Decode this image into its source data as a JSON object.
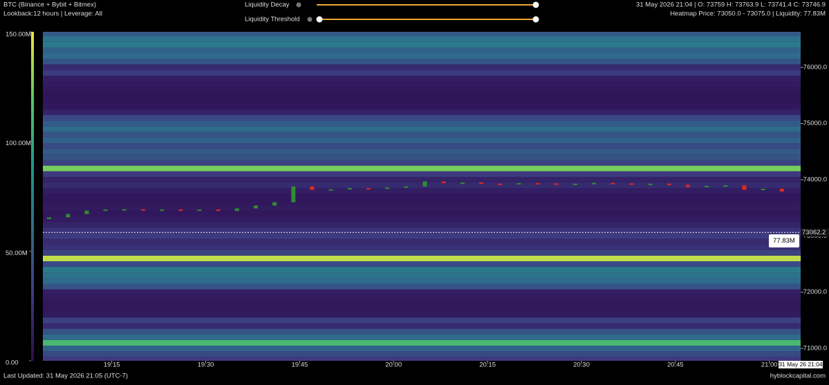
{
  "header": {
    "title": "BTC (Binance + Bybit + Bitmex)",
    "subtitle": "Lookback:12 hours | Leverage: All",
    "slider_1": "Liquidity Decay",
    "slider_2": "Liquidity Threshold",
    "ohlc": "31 May 2026 21:04 | O: 73759 H: 73763.9 L: 73741.4 C: 73746.9",
    "hover": "Heatmap Price: 73050.0 - 73075.0 | Liquidity: 77.83M"
  },
  "footer": {
    "updated": "Last Updated: 31 May 2026 21:05 (UTC-7)",
    "site": "hyblockcapital.com"
  },
  "chart_data": {
    "type": "candlestick",
    "xlim": [
      "19:04",
      "21:05"
    ],
    "xticks": [
      "19:15",
      "19:30",
      "19:45",
      "20:00",
      "20:15",
      "20:30",
      "20:45",
      "21:00"
    ],
    "ylim": [
      70780,
      76630
    ],
    "yticks": [
      {
        "value": 71000,
        "label": "71000.0"
      },
      {
        "value": 72000,
        "label": "72000.0"
      },
      {
        "value": 73000,
        "label": "73000.0"
      },
      {
        "value": 74000,
        "label": "74000.0"
      },
      {
        "value": 75000,
        "label": "75000.0"
      },
      {
        "value": 76000,
        "label": "76000.0"
      }
    ],
    "colorbar_lim": [
      0,
      150
    ],
    "colorbar_ticks": [
      {
        "value": 0,
        "label": "0.00"
      },
      {
        "value": 50,
        "label": "50.00M"
      },
      {
        "value": 100,
        "label": "100.00M"
      },
      {
        "value": 150,
        "label": "150.00M"
      }
    ],
    "heatmap": {
      "step": 100,
      "prices": [
        70800,
        70900,
        71000,
        71100,
        71200,
        71300,
        71400,
        71500,
        71600,
        71700,
        71800,
        71900,
        72000,
        72100,
        72200,
        72300,
        72400,
        72500,
        72600,
        72700,
        72800,
        72900,
        73000,
        73100,
        73200,
        73300,
        73400,
        73500,
        73600,
        73700,
        73800,
        73900,
        74000,
        74100,
        74200,
        74300,
        74400,
        74500,
        74600,
        74700,
        74800,
        74900,
        75000,
        75100,
        75200,
        75300,
        75400,
        75500,
        75600,
        75700,
        75800,
        75900,
        76000,
        76100,
        76200,
        76300,
        76400,
        76500,
        76600
      ],
      "values": [
        30,
        40,
        55,
        110,
        60,
        45,
        20,
        35,
        10,
        8,
        8,
        10,
        12,
        45,
        60,
        65,
        70,
        40,
        140,
        35,
        25,
        20,
        30,
        25,
        15,
        10,
        8,
        10,
        8,
        8,
        12,
        20,
        15,
        30,
        125,
        35,
        45,
        50,
        40,
        55,
        45,
        60,
        50,
        40,
        15,
        8,
        6,
        6,
        8,
        10,
        12,
        30,
        20,
        45,
        60,
        55,
        70,
        65,
        50
      ]
    },
    "x": [
      "19:05",
      "19:08",
      "19:11",
      "19:14",
      "19:17",
      "19:20",
      "19:23",
      "19:26",
      "19:29",
      "19:32",
      "19:35",
      "19:38",
      "19:41",
      "19:44",
      "19:47",
      "19:50",
      "19:53",
      "19:56",
      "19:59",
      "20:02",
      "20:05",
      "20:08",
      "20:11",
      "20:14",
      "20:17",
      "20:20",
      "20:23",
      "20:26",
      "20:29",
      "20:32",
      "20:35",
      "20:38",
      "20:41",
      "20:44",
      "20:47",
      "20:50",
      "20:53",
      "20:56",
      "20:59",
      "21:02"
    ],
    "open": [
      73300,
      73330,
      73390,
      73450,
      73470,
      73475,
      73460,
      73470,
      73455,
      73470,
      73445,
      73490,
      73540,
      73600,
      73880,
      73820,
      73830,
      73850,
      73840,
      73860,
      73880,
      73970,
      73940,
      73950,
      73930,
      73920,
      73940,
      73935,
      73925,
      73930,
      73945,
      73935,
      73920,
      73930,
      73910,
      73870,
      73890,
      73900,
      73820,
      73840
    ],
    "close": [
      73330,
      73390,
      73450,
      73470,
      73475,
      73460,
      73470,
      73455,
      73470,
      73445,
      73490,
      73540,
      73600,
      73880,
      73820,
      73830,
      73850,
      73840,
      73860,
      73880,
      73970,
      73940,
      73950,
      73930,
      73920,
      73940,
      73935,
      73925,
      73930,
      73945,
      73935,
      73920,
      73930,
      73910,
      73870,
      73890,
      73900,
      73820,
      73840,
      73790
    ],
    "up_color": "#2f8f2f",
    "down_color": "#e3281f",
    "crosshair_price": {
      "value": 73062.2,
      "label": "73062.2"
    },
    "crosshair_time": "31 May 26 21:04",
    "tooltip": {
      "value": 77.83,
      "label": "77.83M"
    }
  }
}
